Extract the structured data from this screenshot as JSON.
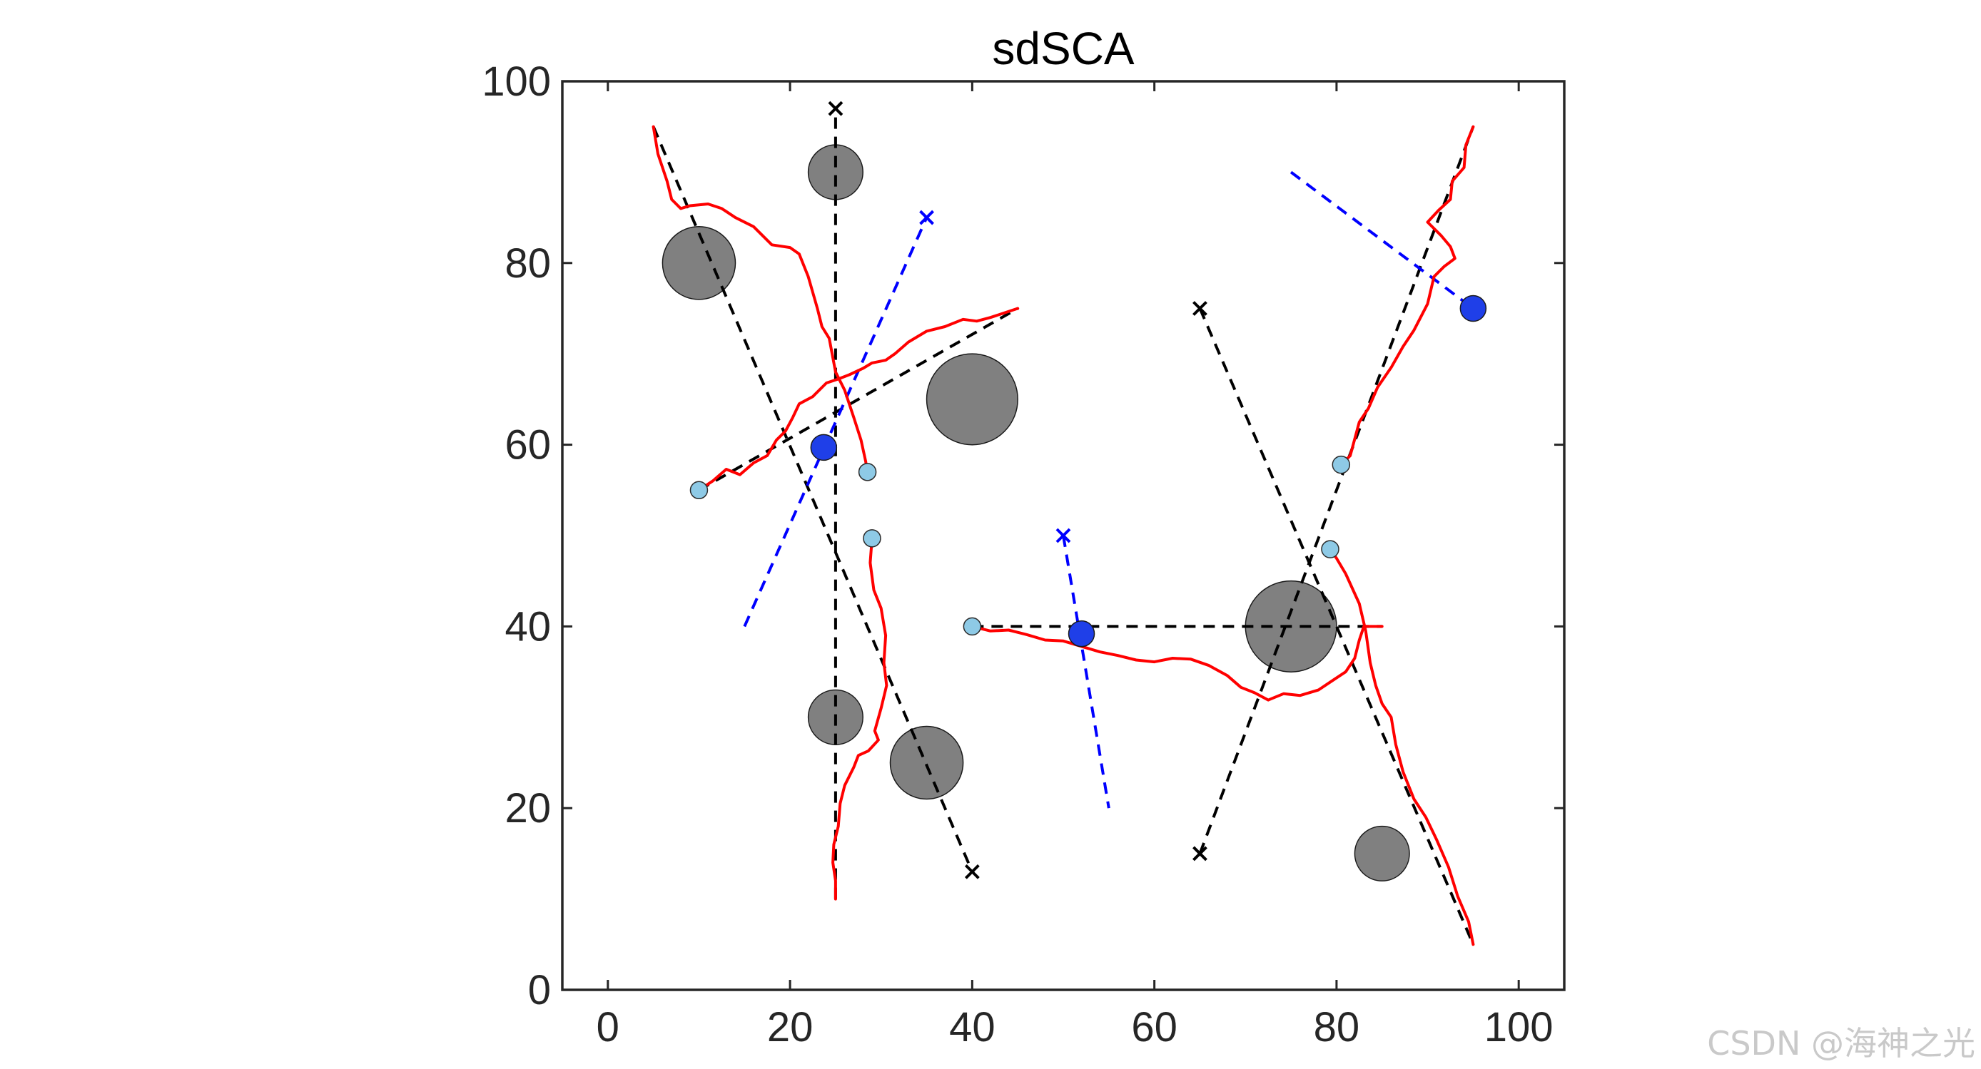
{
  "watermark": "CSDN @海神之光",
  "chart_data": {
    "type": "scatter",
    "title": "sdSCA",
    "xlabel": "",
    "ylabel": "",
    "xlim": [
      -5,
      105
    ],
    "ylim": [
      0,
      100
    ],
    "xticks": [
      0,
      20,
      40,
      60,
      80,
      100
    ],
    "yticks": [
      0,
      20,
      40,
      60,
      80,
      100
    ],
    "colors": {
      "obstacle": "#808080",
      "path": "#ff0000",
      "intruder": "#1f3fe8",
      "agent": "#8ecae6",
      "guide_black": "#000000",
      "guide_blue": "#0000ff"
    },
    "obstacles": [
      {
        "x": 25,
        "y": 90,
        "r": 3
      },
      {
        "x": 10,
        "y": 80,
        "r": 4
      },
      {
        "x": 40,
        "y": 65,
        "r": 5
      },
      {
        "x": 25,
        "y": 30,
        "r": 3
      },
      {
        "x": 35,
        "y": 25,
        "r": 4
      },
      {
        "x": 75,
        "y": 40,
        "r": 5
      },
      {
        "x": 85,
        "y": 15,
        "r": 3
      }
    ],
    "black_guides": [
      {
        "from": [
          5,
          95
        ],
        "to": [
          40,
          13
        ]
      },
      {
        "from": [
          25,
          10
        ],
        "to": [
          25,
          97
        ]
      },
      {
        "from": [
          10,
          55
        ],
        "to": [
          45,
          75
        ]
      },
      {
        "from": [
          40,
          40
        ],
        "to": [
          85,
          40
        ]
      },
      {
        "from": [
          65,
          15
        ],
        "to": [
          95,
          95
        ]
      },
      {
        "from": [
          65,
          75
        ],
        "to": [
          95,
          5
        ]
      }
    ],
    "blue_guides": [
      {
        "from": [
          15,
          40
        ],
        "to": [
          35,
          85
        ]
      },
      {
        "from": [
          50,
          50
        ],
        "to": [
          55,
          20
        ]
      },
      {
        "from": [
          75,
          90
        ],
        "to": [
          95,
          75
        ]
      }
    ],
    "goal_markers_black": [
      [
        25,
        97
      ],
      [
        40,
        13
      ],
      [
        65,
        75
      ],
      [
        65,
        15
      ]
    ],
    "goal_markers_blue": [
      [
        35,
        85
      ],
      [
        50,
        50
      ]
    ],
    "agent_points": [
      [
        10,
        55
      ],
      [
        28.5,
        57
      ],
      [
        29,
        49.7
      ],
      [
        40,
        40
      ],
      [
        80.5,
        57.8
      ],
      [
        79.3,
        48.5
      ]
    ],
    "intruder_points": [
      [
        23.7,
        59.7
      ],
      [
        52,
        39.2
      ],
      [
        95,
        75
      ]
    ],
    "paths": [
      [
        [
          5,
          95
        ],
        [
          5.5,
          92
        ],
        [
          6.5,
          89
        ],
        [
          7,
          87
        ],
        [
          8,
          86
        ],
        [
          9,
          86.3
        ],
        [
          11,
          86.5
        ],
        [
          12.5,
          86
        ],
        [
          14,
          85
        ],
        [
          16,
          84
        ],
        [
          17,
          83
        ],
        [
          18,
          82
        ],
        [
          20,
          81.7
        ],
        [
          21,
          81
        ],
        [
          22,
          78.5
        ],
        [
          23,
          75
        ],
        [
          23.5,
          73
        ],
        [
          24.3,
          71.7
        ],
        [
          25,
          68
        ],
        [
          26,
          66
        ],
        [
          27,
          63
        ],
        [
          27.8,
          60.5
        ],
        [
          28.3,
          58.2
        ],
        [
          28.5,
          57
        ]
      ],
      [
        [
          10,
          55
        ],
        [
          11.5,
          56
        ],
        [
          13,
          57.3
        ],
        [
          14.5,
          56.7
        ],
        [
          16,
          58
        ],
        [
          17.5,
          58.8
        ],
        [
          18.5,
          60.5
        ],
        [
          19.5,
          61.5
        ],
        [
          20.3,
          63
        ],
        [
          21,
          64.5
        ],
        [
          22.5,
          65.3
        ],
        [
          24,
          66.8
        ],
        [
          25.2,
          67.2
        ],
        [
          26.5,
          67.7
        ],
        [
          28,
          68.4
        ],
        [
          29,
          69
        ],
        [
          30.5,
          69.3
        ],
        [
          31.5,
          70
        ],
        [
          33,
          71.3
        ],
        [
          35,
          72.5
        ],
        [
          37,
          73
        ],
        [
          39,
          73.8
        ],
        [
          40.5,
          73.6
        ],
        [
          42,
          74
        ],
        [
          43.5,
          74.5
        ],
        [
          45,
          75
        ]
      ],
      [
        [
          29,
          49.7
        ],
        [
          28.8,
          47
        ],
        [
          29.2,
          44
        ],
        [
          30,
          42
        ],
        [
          30.5,
          39
        ],
        [
          30.3,
          36
        ],
        [
          30.6,
          33.5
        ],
        [
          30,
          31
        ],
        [
          29.3,
          28.5
        ],
        [
          29.7,
          27.5
        ],
        [
          28.6,
          26.3
        ],
        [
          27.5,
          25.8
        ],
        [
          27,
          24.5
        ],
        [
          26,
          22.5
        ],
        [
          25.5,
          20.5
        ],
        [
          25.3,
          18
        ],
        [
          24.8,
          16
        ],
        [
          24.7,
          14
        ],
        [
          25,
          12
        ],
        [
          25,
          10
        ]
      ],
      [
        [
          40,
          40
        ],
        [
          42,
          39.5
        ],
        [
          44,
          39.6
        ],
        [
          46,
          39.1
        ],
        [
          48,
          38.5
        ],
        [
          50,
          38.4
        ],
        [
          52,
          37.8
        ],
        [
          54,
          37.2
        ],
        [
          56,
          36.8
        ],
        [
          58,
          36.3
        ],
        [
          60,
          36.1
        ],
        [
          62,
          36.5
        ],
        [
          64,
          36.4
        ],
        [
          66,
          35.7
        ],
        [
          68,
          34.6
        ],
        [
          69.5,
          33.3
        ],
        [
          71,
          32.7
        ],
        [
          72.5,
          31.9
        ],
        [
          74.2,
          32.6
        ],
        [
          76,
          32.4
        ],
        [
          78,
          33
        ],
        [
          79.5,
          34
        ],
        [
          81,
          35
        ],
        [
          82,
          36.5
        ],
        [
          82.5,
          38.5
        ],
        [
          83,
          40
        ],
        [
          85,
          40
        ]
      ],
      [
        [
          80.5,
          57.8
        ],
        [
          81.5,
          58.8
        ],
        [
          82.5,
          62.5
        ],
        [
          83.5,
          64
        ],
        [
          84.5,
          66.3
        ],
        [
          86,
          68.5
        ],
        [
          87.3,
          70.8
        ],
        [
          88.5,
          72.6
        ],
        [
          90,
          75.5
        ],
        [
          90.7,
          78.5
        ],
        [
          91.8,
          79.6
        ],
        [
          93,
          80.5
        ],
        [
          92.5,
          81.8
        ],
        [
          91.5,
          83
        ],
        [
          90,
          84.5
        ],
        [
          91.2,
          85.8
        ],
        [
          92.5,
          87
        ],
        [
          92.7,
          89
        ],
        [
          94,
          90.5
        ],
        [
          94.2,
          93
        ],
        [
          95,
          95
        ]
      ],
      [
        [
          79.3,
          48.5
        ],
        [
          80,
          47.5
        ],
        [
          81,
          45.8
        ],
        [
          82.5,
          42.5
        ],
        [
          83.2,
          39.5
        ],
        [
          83.7,
          36
        ],
        [
          84.3,
          33.5
        ],
        [
          85,
          31.5
        ],
        [
          86,
          30
        ],
        [
          86.5,
          27
        ],
        [
          87.3,
          24
        ],
        [
          88.5,
          21
        ],
        [
          89.8,
          19
        ],
        [
          91,
          16.5
        ],
        [
          92.3,
          13.5
        ],
        [
          93.3,
          10.3
        ],
        [
          94.5,
          7.5
        ],
        [
          95,
          5
        ]
      ]
    ]
  }
}
